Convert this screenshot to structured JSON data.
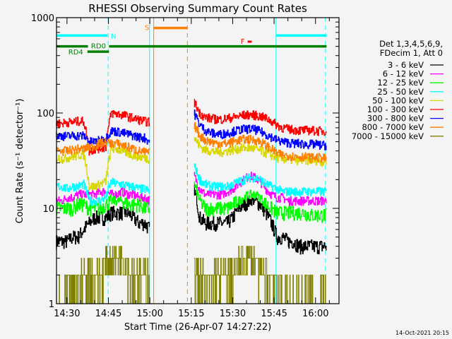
{
  "chart_data": {
    "type": "line",
    "title": "RHESSI Observing Summary Count Rates",
    "xlabel": "Start Time (26-Apr-07 14:27:22)",
    "ylabel": "Count Rate (s⁻¹ detector⁻¹)",
    "yscale": "log",
    "ylim": [
      1,
      1000
    ],
    "xlim_minutes_after_1400": [
      26.2,
      128.5
    ],
    "y_ticks": [
      "1",
      "10",
      "100",
      "1000"
    ],
    "x_ticks": [
      {
        "label": "14:30",
        "minute": 30
      },
      {
        "label": "14:45",
        "minute": 45
      },
      {
        "label": "15:00",
        "minute": 60
      },
      {
        "label": "15:15",
        "minute": 75
      },
      {
        "label": "15:30",
        "minute": 90
      },
      {
        "label": "15:45",
        "minute": 105
      },
      {
        "label": "16:00",
        "minute": 120
      }
    ],
    "legend_header": [
      "Det 1,3,4,5,6,9,",
      "FDecim 1, Att 0"
    ],
    "legend_placement": "right",
    "x_minutes": [
      26,
      28,
      30,
      32,
      34,
      36,
      38,
      40,
      42,
      44,
      46,
      48,
      50,
      52,
      54,
      56,
      58,
      60,
      62,
      64,
      66,
      68,
      70,
      72,
      74,
      76,
      78,
      80,
      82,
      84,
      86,
      88,
      90,
      92,
      94,
      96,
      98,
      100,
      102,
      104,
      106,
      108,
      110,
      112,
      114,
      116,
      118,
      120,
      122,
      124
    ],
    "series": [
      {
        "name": "3 - 6 keV",
        "color": "#000000",
        "values": [
          4.5,
          4.5,
          4.5,
          5,
          5,
          6,
          7,
          8,
          8,
          8,
          9,
          9,
          9,
          9,
          8,
          7,
          7,
          6,
          null,
          null,
          null,
          null,
          null,
          null,
          null,
          16,
          8,
          7,
          7,
          7,
          7,
          7,
          8,
          10,
          11,
          12,
          12,
          11,
          9,
          7,
          5,
          5,
          4.5,
          4.5,
          4,
          4,
          4,
          4,
          4,
          4
        ]
      },
      {
        "name": "6 - 12 keV",
        "color": "#ff00ff",
        "values": [
          12,
          12,
          13,
          13,
          14,
          14,
          14,
          14,
          15,
          15,
          14,
          14,
          15,
          14,
          14,
          13,
          13,
          12,
          null,
          null,
          null,
          null,
          null,
          null,
          null,
          22,
          16,
          14,
          14,
          14,
          14,
          15,
          16,
          18,
          20,
          22,
          21,
          19,
          16,
          14,
          13,
          13,
          12,
          12,
          12,
          12,
          12,
          12,
          12,
          12
        ]
      },
      {
        "name": "12 - 25 keV",
        "color": "#00ff00",
        "values": [
          10,
          10,
          10,
          10,
          11,
          11,
          10,
          10,
          10,
          11,
          12,
          12,
          12,
          11,
          11,
          11,
          10,
          10,
          null,
          null,
          null,
          null,
          null,
          null,
          null,
          18,
          12,
          10,
          10,
          10,
          10,
          10,
          11,
          12,
          13,
          14,
          14,
          13,
          11,
          10,
          9,
          9,
          9,
          9,
          9,
          9,
          8.5,
          8.5,
          8.5,
          8.5
        ]
      },
      {
        "name": "25 - 50 keV",
        "color": "#00ffff",
        "values": [
          17,
          17,
          16,
          17,
          17,
          18,
          12,
          12,
          12,
          13,
          19,
          18,
          18,
          17,
          17,
          16,
          16,
          15,
          null,
          null,
          null,
          null,
          null,
          null,
          null,
          28,
          20,
          18,
          17,
          17,
          17,
          17,
          18,
          19,
          20,
          21,
          21,
          20,
          18,
          17,
          16,
          15,
          15,
          15,
          15,
          15,
          15,
          15,
          15,
          15
        ]
      },
      {
        "name": "50 - 100 keV",
        "color": "#d8d800",
        "values": [
          34,
          33,
          34,
          35,
          36,
          37,
          17,
          17,
          18,
          19,
          42,
          42,
          40,
          38,
          36,
          35,
          34,
          33,
          null,
          null,
          null,
          null,
          null,
          null,
          null,
          55,
          45,
          41,
          40,
          39,
          39,
          40,
          41,
          42,
          43,
          43,
          42,
          40,
          38,
          36,
          34,
          33,
          33,
          32,
          32,
          32,
          32,
          32,
          31,
          31
        ]
      },
      {
        "name": "100 - 300 keV",
        "color": "#ff0000",
        "values": [
          78,
          78,
          80,
          80,
          82,
          82,
          40,
          42,
          43,
          44,
          100,
          98,
          96,
          92,
          88,
          85,
          82,
          80,
          null,
          null,
          null,
          null,
          null,
          null,
          null,
          130,
          100,
          90,
          88,
          86,
          86,
          88,
          90,
          92,
          95,
          96,
          95,
          92,
          88,
          82,
          75,
          70,
          68,
          67,
          66,
          66,
          66,
          65,
          65,
          65
        ]
      },
      {
        "name": "300 - 800 keV",
        "color": "#0000ff",
        "values": [
          58,
          58,
          57,
          58,
          58,
          58,
          50,
          50,
          52,
          54,
          65,
          64,
          62,
          60,
          58,
          56,
          55,
          50,
          null,
          null,
          null,
          null,
          null,
          null,
          null,
          100,
          75,
          66,
          62,
          60,
          60,
          62,
          64,
          66,
          68,
          68,
          67,
          64,
          60,
          56,
          52,
          50,
          49,
          48,
          48,
          47,
          47,
          47,
          46,
          46
        ]
      },
      {
        "name": "800 - 7000 keV",
        "color": "#ff8000",
        "values": [
          40,
          40,
          40,
          41,
          42,
          42,
          44,
          45,
          48,
          50,
          48,
          48,
          46,
          44,
          42,
          40,
          39,
          38,
          null,
          null,
          null,
          null,
          null,
          null,
          null,
          75,
          58,
          52,
          50,
          48,
          48,
          48,
          50,
          52,
          53,
          53,
          52,
          50,
          46,
          42,
          38,
          36,
          36,
          35,
          35,
          35,
          34,
          34,
          34,
          33
        ]
      },
      {
        "name": "7000 - 15000 keV",
        "color": "#808000",
        "values": [
          1,
          1,
          1,
          1,
          1.5,
          2,
          2,
          2,
          2,
          2.5,
          3,
          3,
          3,
          2.5,
          2,
          2,
          2,
          2,
          null,
          null,
          null,
          null,
          null,
          null,
          null,
          2,
          2,
          1.5,
          1.5,
          2,
          2,
          2,
          2,
          2.5,
          3,
          3,
          3,
          2,
          2,
          2,
          1.5,
          1,
          1,
          1,
          1,
          1,
          1,
          1,
          1,
          1
        ]
      }
    ],
    "annotations": {
      "N": {
        "label": "N",
        "color": "#00ffff",
        "level": 650,
        "intervals": [
          [
            26.2,
            44.6
          ],
          [
            105.7,
            124
          ]
        ]
      },
      "S": {
        "label": "S",
        "color": "#ff8000",
        "level": 780,
        "intervals": [
          [
            61.3,
            73.6
          ]
        ]
      },
      "F": {
        "label": "F",
        "color": "#ff0000",
        "level": 560,
        "intervals": [
          [
            95.4,
            96.9
          ]
        ]
      },
      "RD0": {
        "label": "RD0",
        "color": "#008000",
        "level": 500,
        "intervals": [
          [
            26.2,
            37.6
          ],
          [
            45.2,
            124
          ]
        ]
      },
      "RD4": {
        "label": "RD4",
        "color": "#008000",
        "level": 440,
        "intervals": [
          [
            37.4,
            45.2
          ]
        ]
      }
    },
    "vertical_markers": [
      {
        "minute": 26.2,
        "color": "#00ffff",
        "style": "solid"
      },
      {
        "minute": 44.9,
        "color": "#00ffff",
        "style": "dashed"
      },
      {
        "minute": 59.9,
        "color": "#00ffff",
        "style": "solid"
      },
      {
        "minute": 61.4,
        "color": "#ff8000",
        "style": "solid"
      },
      {
        "minute": 73.6,
        "color": "#ff8000",
        "style": "dashed"
      },
      {
        "minute": 105.7,
        "color": "#00ffff",
        "style": "solid"
      },
      {
        "minute": 123.6,
        "color": "#00ffff",
        "style": "dashed"
      }
    ]
  },
  "footer": {
    "timestamp": "14-Oct-2021 20:15"
  }
}
